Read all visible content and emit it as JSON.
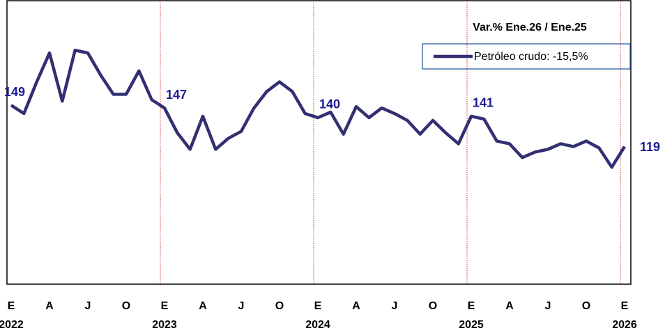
{
  "chart_data": {
    "type": "line",
    "legend_title": "Var.% Ene.26 / Ene.25",
    "categories": [
      "E",
      null,
      null,
      "A",
      null,
      null,
      "J",
      null,
      null,
      "O",
      null,
      null,
      "E",
      null,
      null,
      "A",
      null,
      null,
      "J",
      null,
      null,
      "O",
      null,
      null,
      "E",
      null,
      null,
      "A",
      null,
      null,
      "J",
      null,
      null,
      "O",
      null,
      null,
      "E",
      null,
      null,
      "A",
      null,
      null,
      "J",
      null,
      null,
      "O",
      null,
      null,
      "E"
    ],
    "year_labels": [
      "2022",
      null,
      null,
      null,
      null,
      null,
      null,
      null,
      null,
      null,
      null,
      null,
      "2023",
      null,
      null,
      null,
      null,
      null,
      null,
      null,
      null,
      null,
      null,
      null,
      "2024",
      null,
      null,
      null,
      null,
      null,
      null,
      null,
      null,
      null,
      null,
      null,
      "2025",
      null,
      null,
      null,
      null,
      null,
      null,
      null,
      null,
      null,
      null,
      null,
      "2026"
    ],
    "series": [
      {
        "name": "Petróleo crudo: -15,5%",
        "color": "#322f72",
        "values": [
          149,
          143,
          166,
          187,
          152,
          189,
          187,
          171,
          157,
          157,
          174,
          153,
          147,
          129,
          117,
          141,
          117,
          125,
          130,
          147,
          159,
          166,
          159,
          143,
          140,
          144,
          128,
          148,
          140,
          147,
          143,
          138,
          128,
          138,
          129,
          121,
          141,
          139,
          123,
          121,
          111,
          115,
          117,
          121,
          119,
          123,
          118,
          104,
          119
        ]
      }
    ],
    "ylim": [
      19,
      225
    ]
  }
}
